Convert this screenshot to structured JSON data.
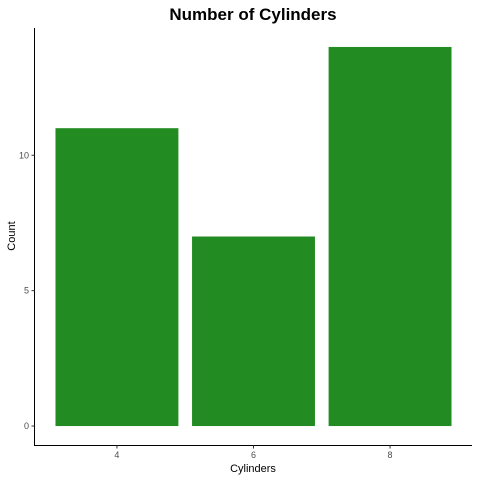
{
  "chart_data": {
    "type": "bar",
    "title": "Number of Cylinders",
    "xlabel": "Cylinders",
    "ylabel": "Count",
    "categories": [
      "4",
      "6",
      "8"
    ],
    "values": [
      11,
      7,
      14
    ],
    "ylim": [
      -0.7,
      14.7
    ],
    "yticks": [
      0,
      5,
      10
    ],
    "bar_color": "#228B22",
    "grid": false,
    "legend": "none"
  }
}
